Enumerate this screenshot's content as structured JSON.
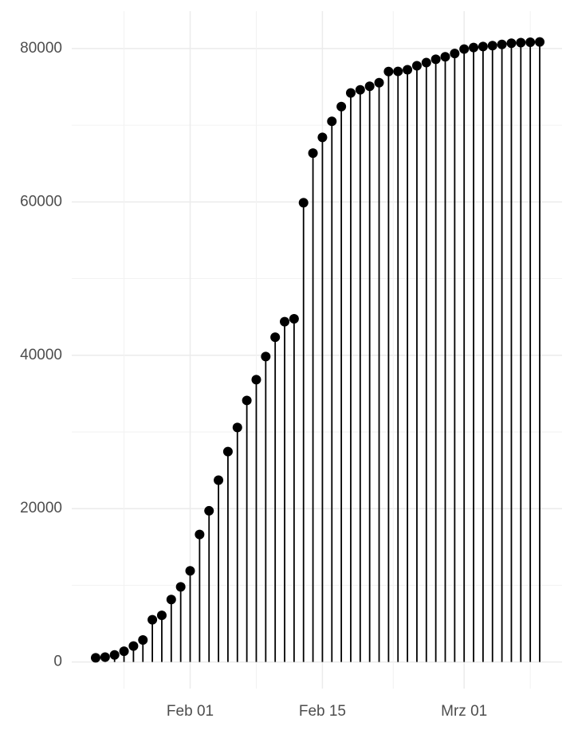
{
  "chart_data": {
    "type": "lollipop",
    "x": [
      "Jan 22",
      "Jan 23",
      "Jan 24",
      "Jan 25",
      "Jan 26",
      "Jan 27",
      "Jan 28",
      "Jan 29",
      "Jan 30",
      "Jan 31",
      "Feb 01",
      "Feb 02",
      "Feb 03",
      "Feb 04",
      "Feb 05",
      "Feb 06",
      "Feb 07",
      "Feb 08",
      "Feb 09",
      "Feb 10",
      "Feb 11",
      "Feb 12",
      "Feb 13",
      "Feb 14",
      "Feb 15",
      "Feb 16",
      "Feb 17",
      "Feb 18",
      "Feb 19",
      "Feb 20",
      "Feb 21",
      "Feb 22",
      "Feb 23",
      "Feb 24",
      "Feb 25",
      "Feb 26",
      "Feb 27",
      "Feb 28",
      "Feb 29",
      "Mrz 01",
      "Mrz 02",
      "Mrz 03",
      "Mrz 04",
      "Mrz 05",
      "Mrz 06",
      "Mrz 07",
      "Mrz 08",
      "Mrz 09"
    ],
    "values": [
      548,
      643,
      920,
      1406,
      2075,
      2877,
      5509,
      6087,
      8141,
      9802,
      11891,
      16630,
      19716,
      23707,
      27440,
      30587,
      34110,
      36814,
      39829,
      42354,
      44386,
      44759,
      59895,
      66358,
      68413,
      70513,
      72434,
      74211,
      74619,
      75077,
      75550,
      77001,
      77022,
      77241,
      77754,
      78166,
      78600,
      78928,
      79356,
      79932,
      80136,
      80261,
      80386,
      80537,
      80690,
      80770,
      80823,
      80860
    ],
    "color": "#000000",
    "xticks": [
      "Feb 01",
      "Feb 15",
      "Mrz 01"
    ],
    "ylim": [
      -3468,
      84876
    ],
    "yticks": [
      0,
      20000,
      40000,
      60000,
      80000
    ],
    "grid": true
  }
}
